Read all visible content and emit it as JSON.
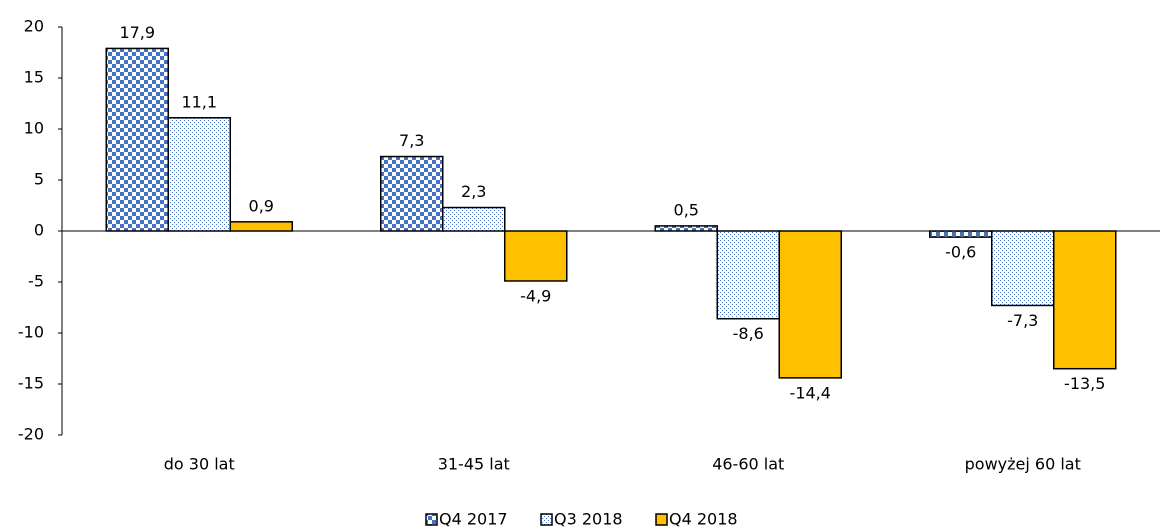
{
  "chart_data": {
    "type": "bar",
    "categories": [
      "do 30 lat",
      "31-45 lat",
      "46-60 lat",
      "powyżej 60 lat"
    ],
    "series": [
      {
        "name": "Q4 2017",
        "color": "#4472c4",
        "pattern": "checker",
        "values": [
          17.9,
          7.3,
          0.5,
          -0.6
        ],
        "value_labels": [
          "17,9",
          "7,3",
          "0,5",
          "-0,6"
        ]
      },
      {
        "name": "Q3 2018",
        "color": "#4472c4",
        "pattern": "dots",
        "values": [
          11.1,
          2.3,
          -8.6,
          -7.3
        ],
        "value_labels": [
          "11,1",
          "2,3",
          "-8,6",
          "-7,3"
        ]
      },
      {
        "name": "Q4 2018",
        "color": "#ffc000",
        "pattern": "solid",
        "values": [
          0.9,
          -4.9,
          -14.4,
          -13.5
        ],
        "value_labels": [
          "0,9",
          "-4,9",
          "-14,4",
          "-13,5"
        ]
      }
    ],
    "ylim": [
      -20,
      20
    ],
    "yticks": [
      -20,
      -15,
      -10,
      -5,
      0,
      5,
      10,
      15,
      20
    ],
    "legend": "bottom"
  }
}
